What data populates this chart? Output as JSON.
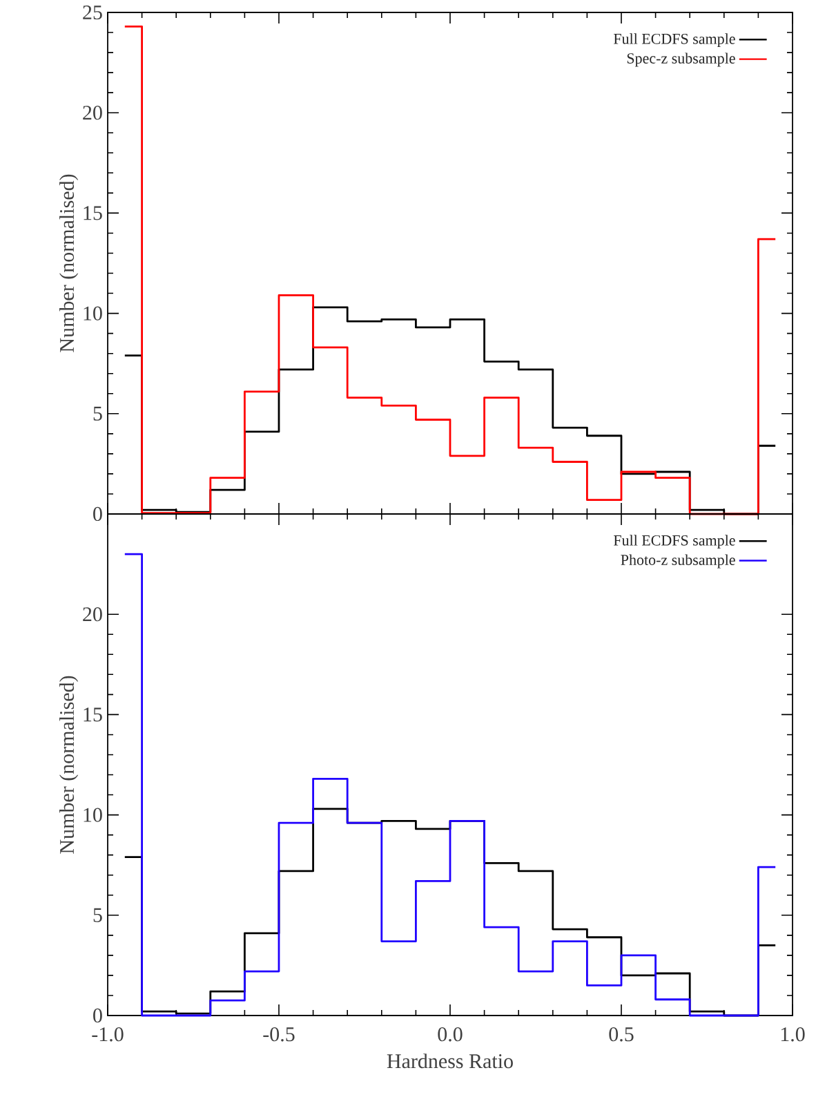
{
  "chart_data": [
    {
      "type": "histogram",
      "ylabel": "Number  (normalised)",
      "bins": [
        -0.95,
        -0.9,
        -0.8,
        -0.7,
        -0.6,
        -0.5,
        -0.4,
        -0.3,
        -0.2,
        -0.1,
        0.0,
        0.1,
        0.2,
        0.3,
        0.4,
        0.5,
        0.6,
        0.7,
        0.8,
        0.9,
        0.95
      ],
      "series": [
        {
          "name": "Full ECDFS sample",
          "color": "#000000",
          "values": [
            7.9,
            0.2,
            0.1,
            1.2,
            4.1,
            7.2,
            10.3,
            9.6,
            9.7,
            9.3,
            9.7,
            7.6,
            7.2,
            4.3,
            3.9,
            2.0,
            2.1,
            0.2,
            0.0,
            3.4
          ]
        },
        {
          "name": "Spec-z subsample",
          "color": "#ff0000",
          "values": [
            24.3,
            0.05,
            0.05,
            1.8,
            6.1,
            10.9,
            8.3,
            5.8,
            5.4,
            4.7,
            2.9,
            5.8,
            3.3,
            2.6,
            0.7,
            2.1,
            1.8,
            0.0,
            0.0,
            13.7
          ]
        }
      ],
      "xlim": [
        -1.0,
        1.0
      ],
      "xticks": [
        -1.0,
        -0.5,
        0.0,
        0.5,
        1.0
      ],
      "ylim": [
        0,
        25
      ],
      "yticks": [
        0,
        5,
        10,
        15,
        20,
        25
      ],
      "tick_labels": "y",
      "legend": "top right"
    },
    {
      "type": "histogram",
      "xlabel": "Hardness Ratio",
      "ylabel": "Number  (normalised)",
      "bins": [
        -0.95,
        -0.9,
        -0.8,
        -0.7,
        -0.6,
        -0.5,
        -0.4,
        -0.3,
        -0.2,
        -0.1,
        0.0,
        0.1,
        0.2,
        0.3,
        0.4,
        0.5,
        0.6,
        0.7,
        0.8,
        0.9,
        0.95
      ],
      "series": [
        {
          "name": "Full ECDFS sample",
          "color": "#000000",
          "values": [
            7.9,
            0.2,
            0.1,
            1.2,
            4.1,
            7.2,
            10.3,
            9.6,
            9.7,
            9.3,
            9.7,
            7.6,
            7.2,
            4.3,
            3.9,
            2.0,
            2.1,
            0.2,
            0.0,
            3.5
          ]
        },
        {
          "name": "Photo-z subsample",
          "color": "#2000ff",
          "values": [
            23.0,
            0.0,
            0.0,
            0.75,
            2.2,
            9.6,
            11.8,
            9.6,
            3.7,
            6.7,
            9.7,
            4.4,
            2.2,
            3.7,
            1.5,
            3.0,
            0.8,
            0.0,
            0.0,
            7.4
          ]
        }
      ],
      "xlim": [
        -1.0,
        1.0
      ],
      "xticks": [
        {
          "value": -1.0,
          "label": "-1.0"
        },
        {
          "value": -0.5,
          "label": "-0.5"
        },
        {
          "value": 0.0,
          "label": "0.0"
        },
        {
          "value": 0.5,
          "label": "0.5"
        },
        {
          "value": 1.0,
          "label": "1.0"
        }
      ],
      "ylim": [
        0,
        25
      ],
      "yticks": [
        0,
        5,
        10,
        15,
        20
      ],
      "legend": "top right"
    }
  ]
}
